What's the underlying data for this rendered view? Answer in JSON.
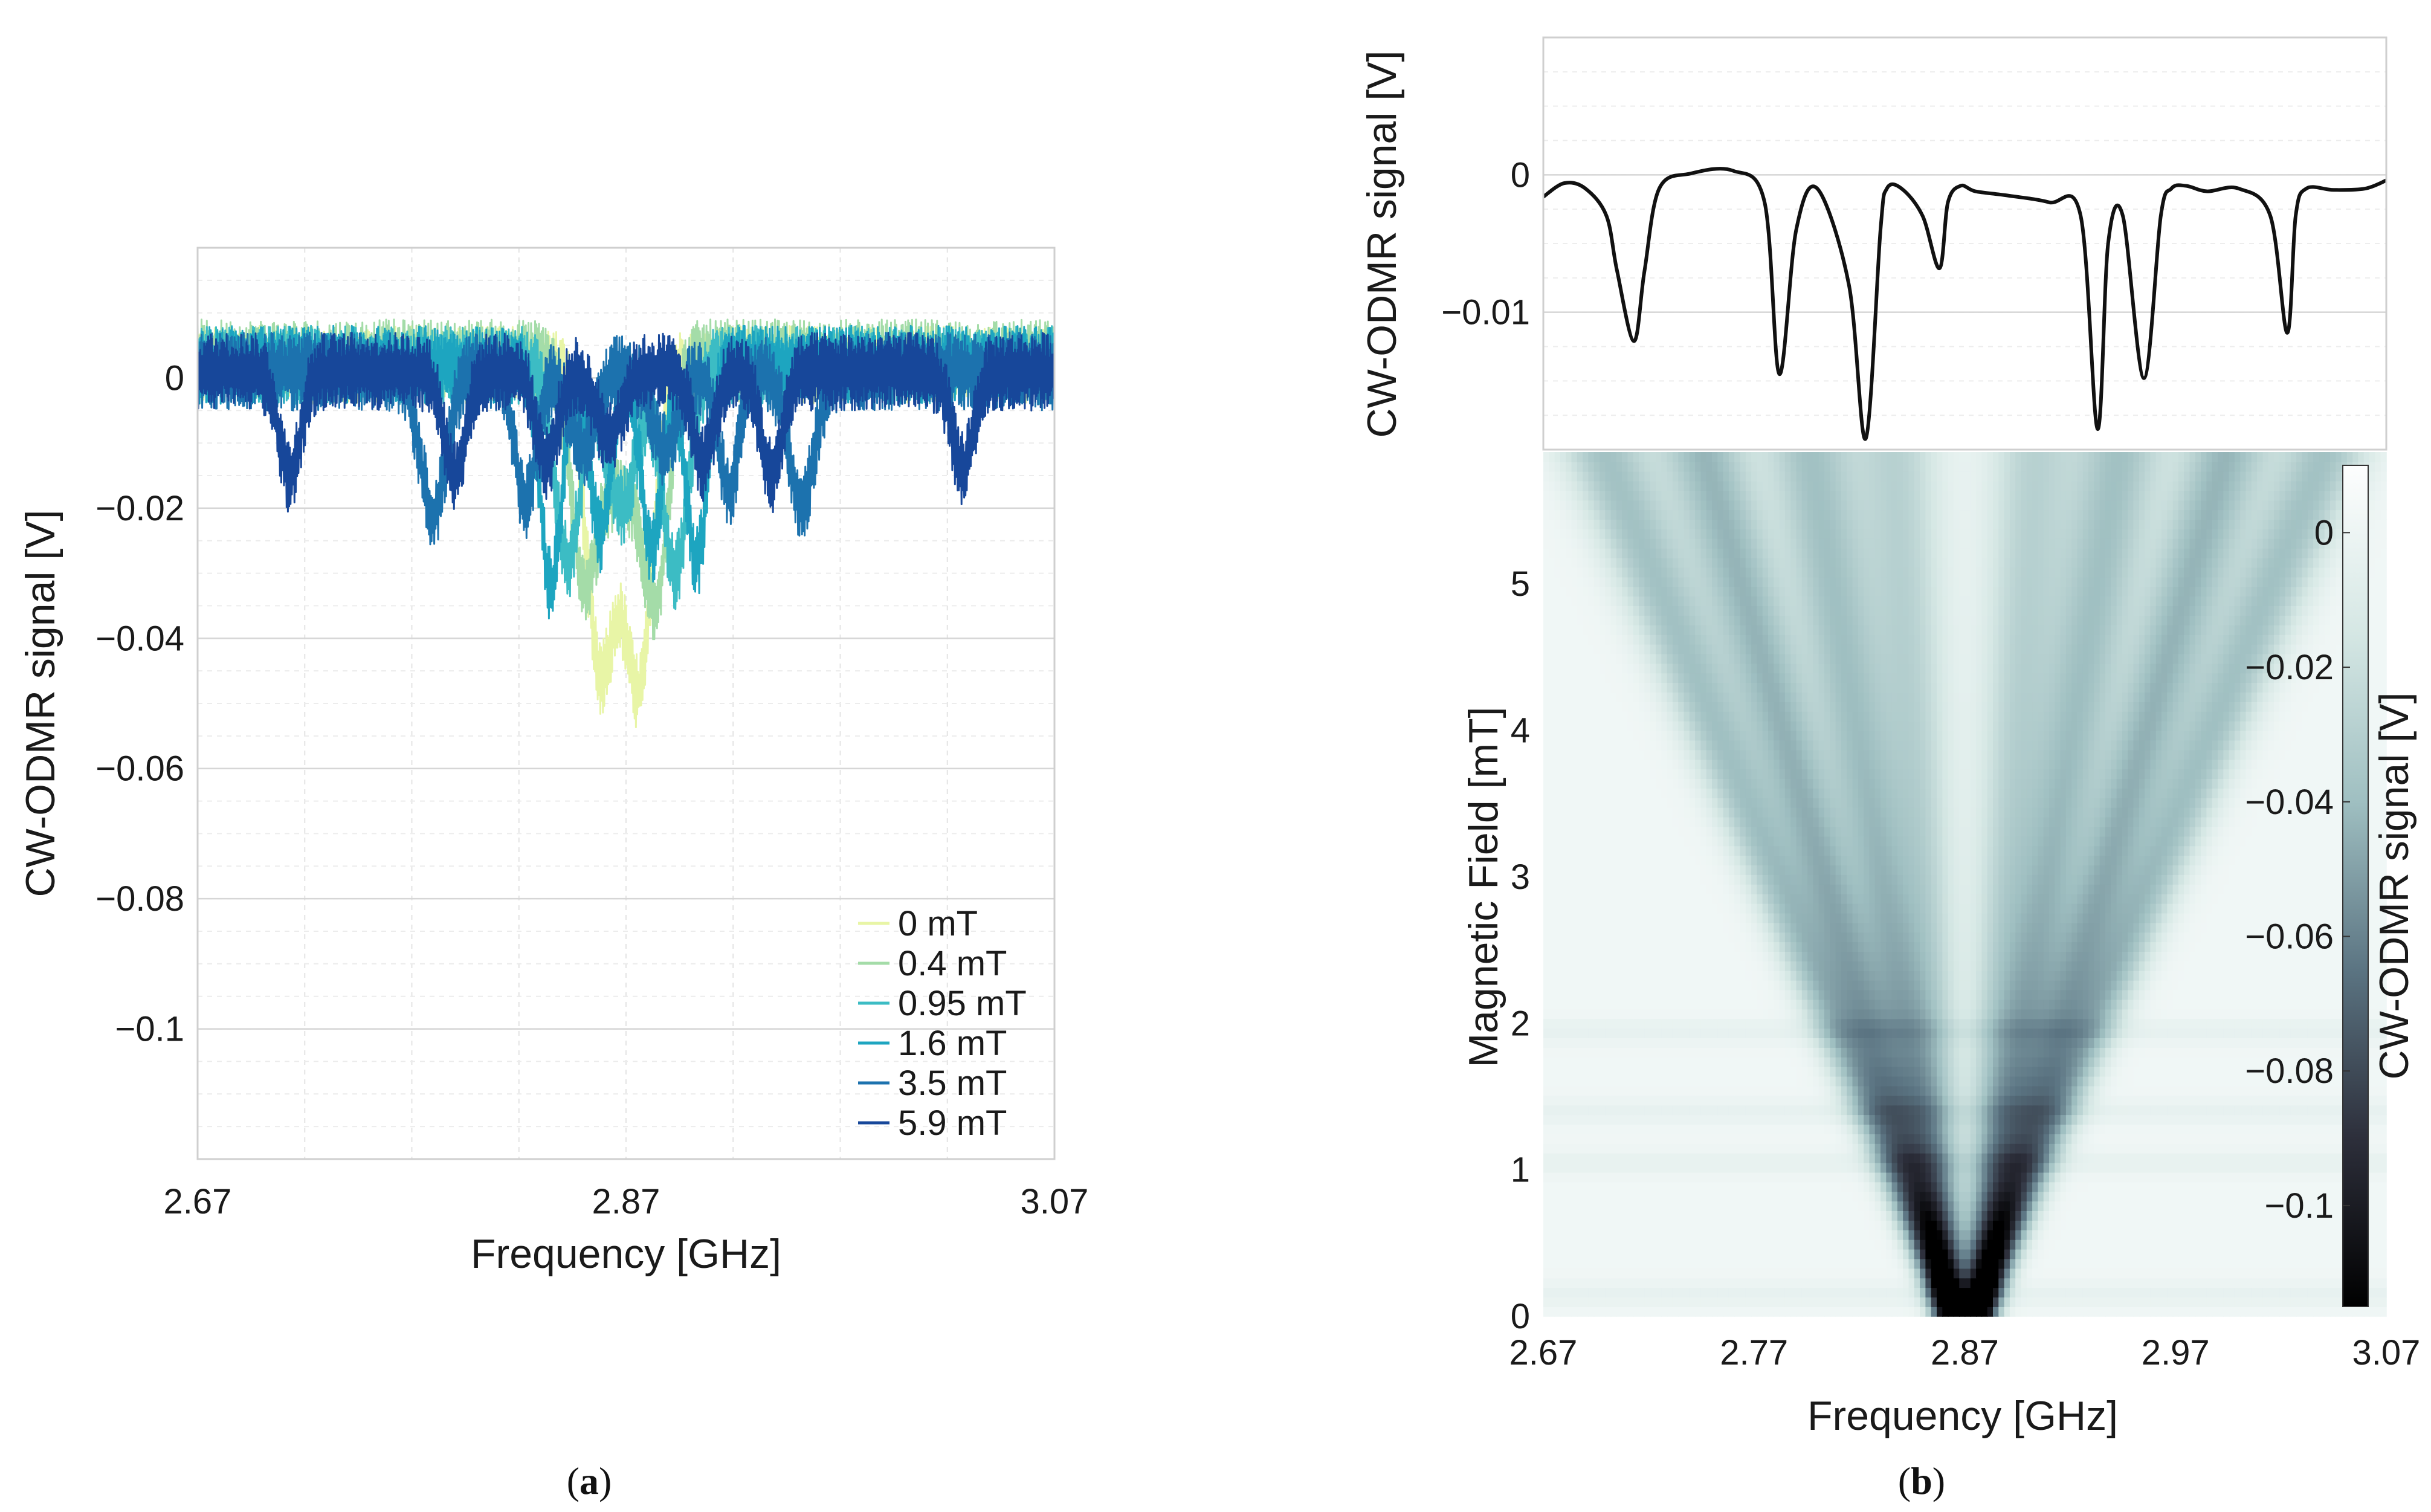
{
  "chart_data": [
    {
      "id": "a",
      "panel_label_open": "(",
      "panel_label_letter": "a",
      "panel_label_close": ")",
      "type": "line",
      "xlabel": "Frequency [GHz]",
      "ylabel": "CW-ODMR signal [V]",
      "xlim": [
        2.67,
        3.07
      ],
      "ylim": [
        -0.12,
        0.02
      ],
      "xticks": [
        2.67,
        2.87,
        3.07
      ],
      "xtick_labels": [
        "2.67",
        "2.87",
        "3.07"
      ],
      "yticks": [
        0,
        -0.02,
        -0.04,
        -0.06,
        -0.08,
        -0.1
      ],
      "ytick_labels": [
        "0",
        "−0.02",
        "−0.04",
        "−0.06",
        "−0.08",
        "−0.1"
      ],
      "grid": true,
      "legend_position": "bottom-right",
      "noise_amplitude": 0.012,
      "series": [
        {
          "name": "0 mT",
          "color": "#e8f5a6",
          "baseline": 0.002,
          "dips": [
            [
              2.857,
              0.032,
              0.006
            ],
            [
              2.877,
              0.037,
              0.006
            ],
            [
              2.866,
              0.022,
              0.01
            ]
          ]
        },
        {
          "name": "0.4 mT",
          "color": "#a4dca8",
          "baseline": 0.003,
          "dips": [
            [
              2.85,
              0.03,
              0.006
            ],
            [
              2.884,
              0.033,
              0.006
            ],
            [
              2.867,
              0.02,
              0.01
            ]
          ]
        },
        {
          "name": "0.95 mT",
          "color": "#3cbcc4",
          "baseline": 0.002,
          "dips": [
            [
              2.843,
              0.03,
              0.006
            ],
            [
              2.893,
              0.032,
              0.006
            ],
            [
              2.868,
              0.022,
              0.007
            ]
          ]
        },
        {
          "name": "1.6 mT",
          "color": "#1da5c0",
          "baseline": 0.002,
          "dips": [
            [
              2.835,
              0.034,
              0.005
            ],
            [
              2.903,
              0.03,
              0.005
            ],
            [
              2.858,
              0.026,
              0.005
            ],
            [
              2.882,
              0.028,
              0.005
            ]
          ]
        },
        {
          "name": "3.5 mT",
          "color": "#1c72ae",
          "baseline": 0.001,
          "dips": [
            [
              2.78,
              0.022,
              0.006
            ],
            [
              2.952,
              0.02,
              0.006
            ],
            [
              2.823,
              0.02,
              0.005
            ],
            [
              2.918,
              0.018,
              0.005
            ],
            [
              2.85,
              0.012,
              0.006
            ],
            [
              2.888,
              0.012,
              0.006
            ]
          ]
        },
        {
          "name": "5.9 mT",
          "color": "#17479a",
          "baseline": 0.001,
          "dips": [
            [
              2.713,
              0.016,
              0.005
            ],
            [
              3.027,
              0.015,
              0.005
            ],
            [
              2.79,
              0.016,
              0.005
            ],
            [
              2.938,
              0.016,
              0.005
            ],
            [
              2.833,
              0.014,
              0.005
            ],
            [
              2.906,
              0.014,
              0.005
            ],
            [
              2.862,
              0.01,
              0.006
            ]
          ]
        }
      ]
    },
    {
      "id": "b-top",
      "type": "line",
      "xlim": [
        2.67,
        3.07
      ],
      "ylim": [
        -0.02,
        0.01
      ],
      "yticks": [
        0,
        -0.01
      ],
      "ytick_labels": [
        "0",
        "−0.01"
      ],
      "ylabel": "CW-ODMR signal [V]",
      "grid": true,
      "line_color": "#111111",
      "series": [
        {
          "name": "5.9 mT",
          "x": [
            2.67,
            2.68,
            2.69,
            2.7,
            2.705,
            2.713,
            2.718,
            2.725,
            2.74,
            2.76,
            2.775,
            2.782,
            2.79,
            2.8,
            2.815,
            2.823,
            2.83,
            2.833,
            2.84,
            2.85,
            2.858,
            2.862,
            2.868,
            2.875,
            2.89,
            2.91,
            2.925,
            2.933,
            2.938,
            2.945,
            2.955,
            2.963,
            2.968,
            2.975,
            2.985,
            3.0,
            3.015,
            3.023,
            3.027,
            3.032,
            3.045,
            3.06,
            3.07
          ],
          "y": [
            -0.0016,
            -0.0006,
            -0.001,
            -0.003,
            -0.007,
            -0.0121,
            -0.007,
            -0.001,
            0.0001,
            0.0003,
            -0.002,
            -0.0145,
            -0.004,
            -0.001,
            -0.008,
            -0.0192,
            -0.004,
            -0.001,
            -0.001,
            -0.003,
            -0.0068,
            -0.002,
            -0.0008,
            -0.0012,
            -0.0015,
            -0.002,
            -0.003,
            -0.0185,
            -0.005,
            -0.003,
            -0.0148,
            -0.003,
            -0.001,
            -0.0008,
            -0.0012,
            -0.001,
            -0.003,
            -0.0115,
            -0.003,
            -0.001,
            -0.0011,
            -0.001,
            -0.0004
          ]
        }
      ]
    },
    {
      "id": "b-bottom",
      "panel_label_open": "(",
      "panel_label_letter": "b",
      "panel_label_close": ")",
      "type": "heatmap",
      "xlabel": "Frequency [GHz]",
      "ylabel": "Magnetic Field [mT]",
      "xlim": [
        2.67,
        3.07
      ],
      "ylim": [
        0,
        5.9
      ],
      "xticks": [
        2.67,
        2.77,
        2.87,
        2.97,
        3.07
      ],
      "xtick_labels": [
        "2.67",
        "2.77",
        "2.87",
        "2.97",
        "3.07"
      ],
      "yticks": [
        0,
        1,
        2,
        3,
        4,
        5
      ],
      "ytick_labels": [
        "0",
        "1",
        "2",
        "3",
        "4",
        "5"
      ],
      "colorbar": {
        "label": "CW-ODMR signal [V]",
        "range": [
          -0.115,
          0.01
        ],
        "ticks": [
          0,
          -0.02,
          -0.04,
          -0.06,
          -0.08,
          -0.1
        ],
        "tick_labels": [
          "0",
          "−0.02",
          "−0.04",
          "−0.06",
          "−0.08",
          "−0.1"
        ],
        "colors": [
          "#000000",
          "#2d2f3b",
          "#5b7482",
          "#9fbfc1",
          "#d5e7e4",
          "#fdfefe"
        ]
      },
      "background_value": 0.002,
      "center_frequency": 2.87,
      "branches": [
        {
          "splitting_ghz_per_mt": 0.028,
          "depth": 0.04,
          "width": 0.006
        },
        {
          "splitting_ghz_per_mt": 0.02,
          "depth": 0.045,
          "width": 0.006
        },
        {
          "splitting_ghz_per_mt": 0.0115,
          "depth": 0.04,
          "width": 0.006
        },
        {
          "splitting_ghz_per_mt": 0.0045,
          "depth": 0.03,
          "width": 0.006
        }
      ],
      "dark_bands_mt": [
        1.95,
        1.4,
        1.05,
        0.15
      ]
    }
  ]
}
